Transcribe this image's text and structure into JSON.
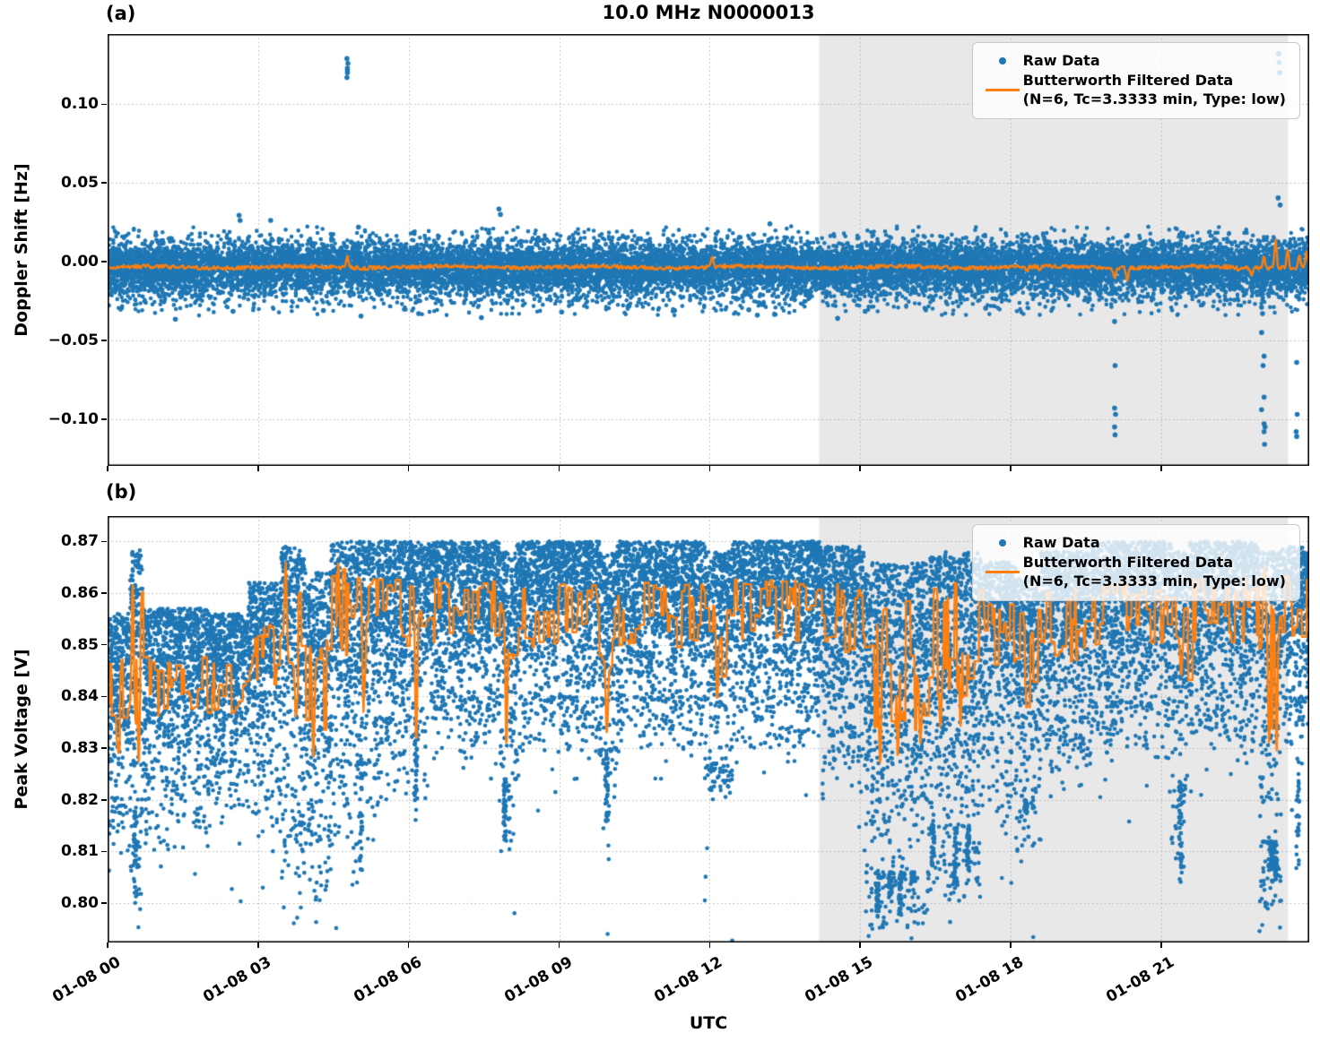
{
  "title": "10.0 MHz N0000013",
  "xlabel": "UTC",
  "legend": {
    "raw_label": "Raw Data",
    "filtered_label_line1": "Butterworth Filtered Data",
    "filtered_label_line2": "(N=6, Tc=3.3333 min, Type: low)"
  },
  "colors": {
    "raw": "#1f77b4",
    "filtered": "#ff7f0e",
    "shade": "#e8e8e8",
    "grid": "#b3b3b3",
    "spine": "#000000"
  },
  "x_axis": {
    "label": "UTC",
    "xlim_hours": [
      0,
      23.95
    ],
    "ticks_hours": [
      0,
      3,
      6,
      9,
      12,
      15,
      18,
      21
    ],
    "tick_labels": [
      "01-08 00",
      "01-08 03",
      "01-08 06",
      "01-08 09",
      "01-08 12",
      "01-08 15",
      "01-08 18",
      "01-08 21"
    ]
  },
  "shaded_region_hours": [
    14.18,
    23.53
  ],
  "chart_data": [
    {
      "panel_label": "(a)",
      "type": "scatter+line",
      "ylabel": "Doppler Shift [Hz]",
      "ylim": [
        -0.1297,
        0.1446
      ],
      "ytick_values": [
        0.1,
        0.05,
        0.0,
        -0.05,
        -0.1
      ],
      "ytick_labels": [
        "0.10",
        "0.05",
        "0.00",
        "−0.05",
        "−0.10"
      ],
      "raw": {
        "label": "Raw Data",
        "band_mean": -0.0035,
        "sigma_core": 0.0068,
        "sigma_mid": 0.0105,
        "sigma_fringe": 0.015,
        "down_skew": 1.18,
        "n_points": 16000,
        "outliers": [
          [
            2.62,
            0.0295
          ],
          [
            2.64,
            0.0262
          ],
          [
            3.25,
            0.0262
          ],
          [
            5.0,
            0.022
          ],
          [
            7.8,
            0.0335
          ],
          [
            7.83,
            0.03
          ],
          [
            13.2,
            0.024
          ],
          [
            23.33,
            0.0405
          ],
          [
            23.37,
            0.036
          ],
          [
            4.77,
            0.117
          ],
          [
            4.78,
            0.12
          ],
          [
            4.78,
            0.123
          ],
          [
            4.79,
            0.126
          ],
          [
            4.77,
            0.129
          ],
          [
            4.78,
            0.1215
          ],
          [
            23.34,
            0.132
          ],
          [
            23.35,
            0.1265
          ],
          [
            23.36,
            0.12
          ],
          [
            1.35,
            -0.0365
          ],
          [
            2.5,
            -0.0315
          ],
          [
            4.3,
            -0.031
          ],
          [
            5.05,
            -0.0345
          ],
          [
            6.2,
            -0.033
          ],
          [
            7.45,
            -0.0355
          ],
          [
            9.05,
            -0.032
          ],
          [
            11.3,
            -0.031
          ],
          [
            12.78,
            -0.0305
          ],
          [
            12.95,
            -0.034
          ],
          [
            14.55,
            -0.036
          ],
          [
            15.1,
            -0.0315
          ],
          [
            16.3,
            -0.03
          ],
          [
            17.5,
            -0.0295
          ],
          [
            20.07,
            -0.038
          ],
          [
            20.08,
            -0.066
          ],
          [
            20.07,
            -0.093
          ],
          [
            20.09,
            -0.097
          ],
          [
            20.07,
            -0.105
          ],
          [
            20.08,
            -0.11
          ],
          [
            22.98,
            -0.021
          ],
          [
            23.0,
            -0.029
          ],
          [
            23.02,
            -0.033
          ],
          [
            23.0,
            -0.045
          ],
          [
            23.05,
            -0.06
          ],
          [
            23.03,
            -0.066
          ],
          [
            23.05,
            -0.086
          ],
          [
            23.0,
            -0.094
          ],
          [
            23.05,
            -0.103
          ],
          [
            23.07,
            -0.105
          ],
          [
            23.05,
            -0.108
          ],
          [
            23.06,
            -0.116
          ],
          [
            23.7,
            -0.022
          ],
          [
            23.7,
            -0.064
          ],
          [
            23.71,
            -0.097
          ],
          [
            23.69,
            -0.108
          ],
          [
            23.7,
            -0.111
          ]
        ]
      },
      "filtered": {
        "label": "Butterworth Filtered Data (N=6, Tc=3.3333 min, Type: low)",
        "base": -0.0035,
        "jitter": 0.0012,
        "spikes": [
          [
            4.78,
            0.0045
          ],
          [
            12.05,
            0.004
          ],
          [
            18.32,
            -0.0065
          ],
          [
            18.58,
            -0.006
          ],
          [
            20.07,
            -0.0105
          ],
          [
            20.32,
            -0.0115
          ],
          [
            22.55,
            -0.006
          ],
          [
            22.8,
            -0.008
          ],
          [
            23.05,
            0.0045
          ],
          [
            23.28,
            0.0135
          ],
          [
            23.4,
            -0.003
          ],
          [
            23.52,
            0.009
          ],
          [
            23.75,
            0.004
          ],
          [
            23.9,
            0.007
          ]
        ]
      }
    },
    {
      "panel_label": "(b)",
      "type": "scatter+line",
      "ylabel": "Peak Voltage [V]",
      "ylim": [
        0.7924,
        0.8749
      ],
      "ytick_values": [
        0.87,
        0.86,
        0.85,
        0.84,
        0.83,
        0.82,
        0.81,
        0.8
      ],
      "ytick_labels": [
        "0.87",
        "0.86",
        "0.85",
        "0.84",
        "0.83",
        "0.82",
        "0.81",
        "0.80"
      ],
      "raw": {
        "label": "Raw Data",
        "clip_max": 0.8702,
        "points_per_hour": 760,
        "tail_fraction": 0.07,
        "segments": [
          {
            "t0": 0.0,
            "t1": 0.45,
            "top": 0.856,
            "dense_low": 0.824,
            "tail_low": 0.806,
            "line_base": 0.839,
            "line_amp": 0.009
          },
          {
            "t0": 0.45,
            "t1": 0.7,
            "top": 0.869,
            "dense_low": 0.818,
            "tail_low": 0.796,
            "line_base": 0.845,
            "line_amp": 0.017
          },
          {
            "t0": 0.7,
            "t1": 2.0,
            "top": 0.857,
            "dense_low": 0.826,
            "tail_low": 0.81,
            "line_base": 0.841,
            "line_amp": 0.007
          },
          {
            "t0": 2.0,
            "t1": 2.8,
            "top": 0.856,
            "dense_low": 0.828,
            "tail_low": 0.814,
            "line_base": 0.841,
            "line_amp": 0.006
          },
          {
            "t0": 2.8,
            "t1": 3.45,
            "top": 0.862,
            "dense_low": 0.826,
            "tail_low": 0.81,
            "line_base": 0.846,
            "line_amp": 0.008
          },
          {
            "t0": 3.45,
            "t1": 3.95,
            "top": 0.869,
            "dense_low": 0.818,
            "tail_low": 0.799,
            "line_base": 0.851,
            "line_amp": 0.013
          },
          {
            "t0": 3.95,
            "t1": 4.45,
            "top": 0.864,
            "dense_low": 0.815,
            "tail_low": 0.8,
            "line_base": 0.84,
            "line_amp": 0.011
          },
          {
            "t0": 4.45,
            "t1": 5.35,
            "top": 0.87,
            "dense_low": 0.828,
            "tail_low": 0.805,
            "line_base": 0.855,
            "line_amp": 0.01
          },
          {
            "t0": 5.35,
            "t1": 6.4,
            "top": 0.87,
            "dense_low": 0.836,
            "tail_low": 0.818,
            "line_base": 0.856,
            "line_amp": 0.008
          },
          {
            "t0": 6.4,
            "t1": 7.8,
            "top": 0.87,
            "dense_low": 0.84,
            "tail_low": 0.828,
            "line_base": 0.856,
            "line_amp": 0.007
          },
          {
            "t0": 7.8,
            "t1": 8.15,
            "top": 0.868,
            "dense_low": 0.824,
            "tail_low": 0.812,
            "line_base": 0.849,
            "line_amp": 0.012
          },
          {
            "t0": 8.15,
            "t1": 9.8,
            "top": 0.87,
            "dense_low": 0.84,
            "tail_low": 0.829,
            "line_base": 0.855,
            "line_amp": 0.007
          },
          {
            "t0": 9.8,
            "t1": 10.15,
            "top": 0.868,
            "dense_low": 0.83,
            "tail_low": 0.813,
            "line_base": 0.851,
            "line_amp": 0.01
          },
          {
            "t0": 10.15,
            "t1": 11.9,
            "top": 0.87,
            "dense_low": 0.84,
            "tail_low": 0.83,
            "line_base": 0.855,
            "line_amp": 0.007
          },
          {
            "t0": 11.9,
            "t1": 12.45,
            "top": 0.868,
            "dense_low": 0.827,
            "tail_low": 0.82,
            "line_base": 0.85,
            "line_amp": 0.01
          },
          {
            "t0": 12.45,
            "t1": 14.2,
            "top": 0.87,
            "dense_low": 0.84,
            "tail_low": 0.83,
            "line_base": 0.856,
            "line_amp": 0.007
          },
          {
            "t0": 14.2,
            "t1": 15.1,
            "top": 0.869,
            "dense_low": 0.834,
            "tail_low": 0.82,
            "line_base": 0.854,
            "line_amp": 0.008
          },
          {
            "t0": 15.1,
            "t1": 16.35,
            "top": 0.866,
            "dense_low": 0.806,
            "tail_low": 0.795,
            "line_base": 0.845,
            "line_amp": 0.016
          },
          {
            "t0": 16.35,
            "t1": 17.4,
            "top": 0.868,
            "dense_low": 0.815,
            "tail_low": 0.801,
            "line_base": 0.849,
            "line_amp": 0.013
          },
          {
            "t0": 17.4,
            "t1": 18.1,
            "top": 0.866,
            "dense_low": 0.832,
            "tail_low": 0.815,
            "line_base": 0.852,
            "line_amp": 0.008
          },
          {
            "t0": 18.1,
            "t1": 18.6,
            "top": 0.863,
            "dense_low": 0.82,
            "tail_low": 0.806,
            "line_base": 0.846,
            "line_amp": 0.011
          },
          {
            "t0": 18.6,
            "t1": 19.6,
            "top": 0.868,
            "dense_low": 0.836,
            "tail_low": 0.822,
            "line_base": 0.853,
            "line_amp": 0.008
          },
          {
            "t0": 19.6,
            "t1": 21.2,
            "top": 0.87,
            "dense_low": 0.839,
            "tail_low": 0.828,
            "line_base": 0.855,
            "line_amp": 0.007
          },
          {
            "t0": 21.2,
            "t1": 21.55,
            "top": 0.868,
            "dense_low": 0.824,
            "tail_low": 0.804,
            "line_base": 0.851,
            "line_amp": 0.01
          },
          {
            "t0": 21.55,
            "t1": 22.95,
            "top": 0.87,
            "dense_low": 0.841,
            "tail_low": 0.831,
            "line_base": 0.856,
            "line_amp": 0.007
          },
          {
            "t0": 22.95,
            "t1": 23.4,
            "top": 0.868,
            "dense_low": 0.812,
            "tail_low": 0.8,
            "line_base": 0.846,
            "line_amp": 0.016
          },
          {
            "t0": 23.4,
            "t1": 23.95,
            "top": 0.869,
            "dense_low": 0.84,
            "tail_low": 0.83,
            "line_base": 0.857,
            "line_amp": 0.007
          }
        ],
        "dip_columns": [
          [
            0.55,
            0.8
          ],
          [
            5.05,
            0.806
          ],
          [
            6.15,
            0.816
          ],
          [
            7.92,
            0.812
          ],
          [
            9.95,
            0.814
          ],
          [
            12.1,
            0.827
          ],
          [
            15.35,
            0.797
          ],
          [
            15.6,
            0.8
          ],
          [
            15.8,
            0.796
          ],
          [
            16.05,
            0.804
          ],
          [
            16.45,
            0.806
          ],
          [
            16.9,
            0.803
          ],
          [
            17.15,
            0.806
          ],
          [
            18.3,
            0.817
          ],
          [
            21.38,
            0.802
          ],
          [
            23.2,
            0.806
          ],
          [
            23.28,
            0.804
          ],
          [
            23.72,
            0.806
          ]
        ]
      },
      "filtered": {
        "label": "Butterworth Filtered Data (N=6, Tc=3.3333 min, Type: low)",
        "clip": [
          0.796,
          0.868
        ],
        "dips": [
          [
            0.22,
            0.829
          ],
          [
            0.62,
            0.827
          ],
          [
            3.75,
            0.836
          ],
          [
            4.1,
            0.828
          ],
          [
            5.1,
            0.837
          ],
          [
            6.15,
            0.831
          ],
          [
            7.95,
            0.83
          ],
          [
            9.95,
            0.833
          ],
          [
            12.15,
            0.839
          ],
          [
            15.4,
            0.827
          ],
          [
            15.75,
            0.828
          ],
          [
            16.2,
            0.831
          ],
          [
            16.6,
            0.834
          ],
          [
            17.0,
            0.834
          ],
          [
            18.35,
            0.838
          ],
          [
            21.4,
            0.844
          ],
          [
            23.15,
            0.831
          ],
          [
            23.3,
            0.829
          ]
        ],
        "spikes": [
          [
            0.5,
            0.862
          ],
          [
            3.55,
            0.866
          ],
          [
            4.6,
            0.866
          ],
          [
            23.05,
            0.865
          ]
        ]
      }
    }
  ]
}
